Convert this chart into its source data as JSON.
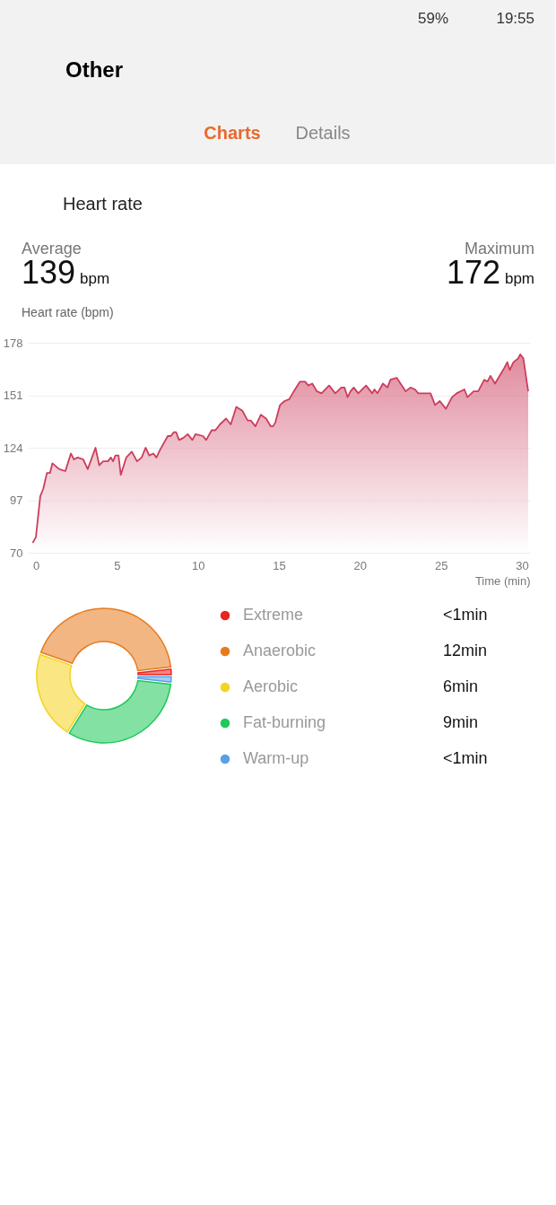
{
  "chart_data": [
    {
      "type": "area",
      "title": "Heart rate",
      "xlabel": "Time (min)",
      "ylabel": "Heart rate (bpm)",
      "annotations": [
        "19:55",
        "59%",
        "Other",
        "Charts",
        "Details",
        "Average",
        "139",
        "bpm",
        "Maximum",
        "172",
        "bpm"
      ],
      "x": [
        -0.2,
        0.0,
        0.27,
        0.46,
        0.68,
        0.87,
        1.02,
        1.44,
        1.82,
        2.16,
        2.35,
        2.58,
        2.92,
        3.2,
        3.68,
        3.91,
        4.15,
        4.44,
        4.63,
        4.76,
        4.91,
        5.1,
        5.24,
        5.58,
        5.92,
        6.24,
        6.53,
        6.77,
        7.0,
        7.25,
        7.44,
        7.67,
        8.14,
        8.33,
        8.52,
        8.65,
        8.84,
        9.09,
        9.37,
        9.66,
        9.85,
        10.32,
        10.51,
        10.85,
        11.08,
        11.36,
        11.74,
        12.03,
        12.37,
        12.75,
        13.07,
        13.26,
        13.55,
        13.89,
        14.21,
        14.5,
        14.64,
        14.78,
        15.07,
        15.35,
        15.64,
        15.92,
        16.3,
        16.62,
        16.81,
        17.06,
        17.35,
        17.63,
        18.1,
        18.48,
        18.86,
        19.05,
        19.24,
        19.42,
        19.62,
        19.9,
        20.38,
        20.76,
        20.9,
        21.08,
        21.42,
        21.7,
        21.89,
        22.27,
        22.83,
        23.12,
        23.4,
        23.6,
        24.17,
        24.36,
        24.64,
        24.93,
        25.31,
        25.69,
        25.97,
        26.45,
        26.64,
        27.02,
        27.3,
        27.68,
        27.87,
        28.06,
        28.34,
        28.63,
        28.91,
        29.1,
        29.25,
        29.48,
        29.77,
        29.9,
        30.09,
        30.39
      ],
      "series": [
        {
          "color": "#cc3d5c",
          "values": [
            75,
            78,
            99,
            103,
            111,
            111,
            116,
            113,
            112,
            121,
            118,
            119,
            118,
            113,
            124,
            115,
            117,
            117,
            119,
            117,
            120,
            120,
            110,
            119,
            122,
            117,
            119,
            124,
            120,
            121,
            119,
            123,
            130,
            130,
            132,
            132,
            128,
            129,
            131,
            128,
            131,
            130,
            128,
            133,
            133,
            136,
            139,
            136,
            145,
            143,
            138,
            138,
            135,
            141,
            139,
            135,
            135,
            137,
            146,
            148,
            149,
            153,
            158,
            158,
            156,
            157,
            153,
            152,
            156,
            152,
            155,
            155,
            150,
            153,
            155,
            152,
            156,
            152,
            154,
            152,
            157,
            155,
            159,
            160,
            153,
            155,
            154,
            152,
            152,
            152,
            146,
            148,
            144,
            150,
            152,
            154,
            150,
            153,
            153,
            159,
            158,
            161,
            157,
            161,
            165,
            168,
            164,
            168,
            170,
            172,
            170,
            153
          ]
        }
      ],
      "xlim": [
        -0.5,
        30.5
      ],
      "xticks": [
        0,
        5,
        10,
        15,
        20,
        25,
        30
      ],
      "ylim": [
        70,
        178
      ],
      "yticks": [
        70,
        97,
        124,
        151,
        178
      ],
      "grid": "y"
    },
    {
      "type": "donut",
      "categories": [
        "Extreme",
        "Anaerobic",
        "Aerobic",
        "Fat-burning",
        "Warm-up"
      ],
      "values": [
        0.5,
        12,
        6,
        9,
        0.5
      ],
      "colors": [
        "#e8251e",
        "#e87a1e",
        "#f5d31e",
        "#1ec95a",
        "#5aa0e8"
      ],
      "value_labels": [
        "<1min",
        "12min",
        "6min",
        "9min",
        "<1min"
      ],
      "legend": "right"
    }
  ]
}
